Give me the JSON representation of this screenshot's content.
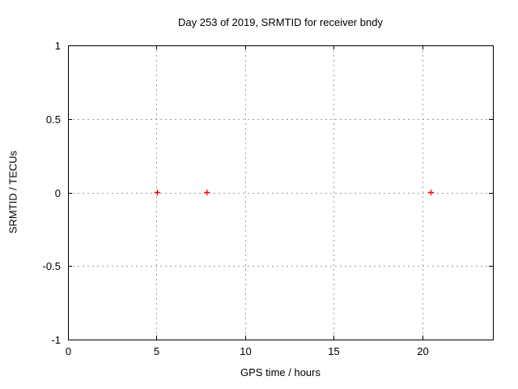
{
  "window": {
    "background": "#ffffff"
  },
  "chart_data": {
    "type": "scatter",
    "title": "Day 253 of 2019, SRMTID for receiver bndy",
    "xlabel": "GPS time / hours",
    "ylabel": "SRMTID / TECUs",
    "xlim": [
      0,
      24
    ],
    "ylim": [
      -1,
      1
    ],
    "xticks": [
      {
        "value": 0,
        "label": "0"
      },
      {
        "value": 5,
        "label": "5"
      },
      {
        "value": 10,
        "label": "10"
      },
      {
        "value": 15,
        "label": "15"
      },
      {
        "value": 20,
        "label": "20"
      }
    ],
    "yticks": [
      {
        "value": -1,
        "label": "-1"
      },
      {
        "value": -0.5,
        "label": "-0.5"
      },
      {
        "value": 0,
        "label": "0"
      },
      {
        "value": 0.5,
        "label": "0.5"
      },
      {
        "value": 1,
        "label": "1"
      }
    ],
    "grid": true,
    "legend": "none",
    "grid_color": "#9e9e9e",
    "axis_color": "#000000",
    "series": [
      {
        "name": "SRMTID",
        "marker": "plus",
        "color": "#ff0000",
        "points": [
          {
            "x": 5.05,
            "y": 0
          },
          {
            "x": 7.85,
            "y": 0
          },
          {
            "x": 20.5,
            "y": 0
          }
        ]
      }
    ]
  }
}
